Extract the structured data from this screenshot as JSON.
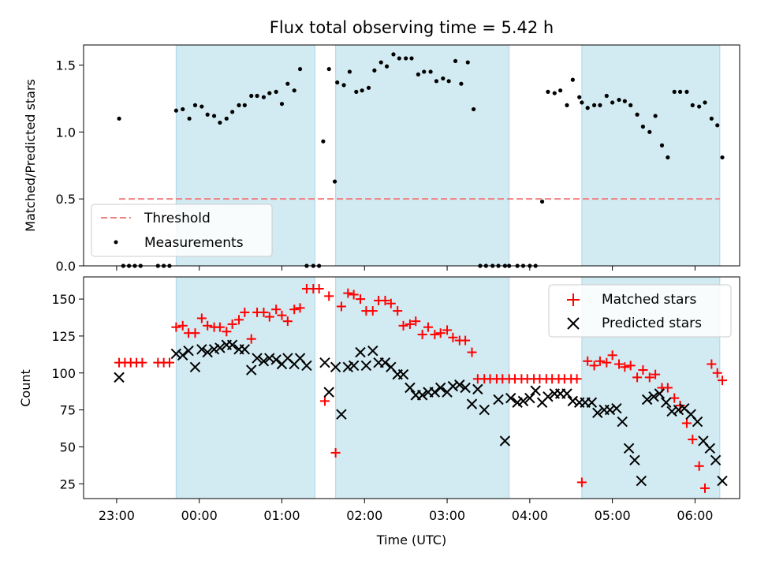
{
  "chart_data": [
    {
      "type": "scatter",
      "title": "Flux total observing time = 5.42 h",
      "ylabel": "Matched/Predicted stars",
      "xlabel": "",
      "x_unit": "UTC time (hours after 23:00 of first day)",
      "xlim": [
        -0.4,
        7.54
      ],
      "ylim": [
        0,
        1.65
      ],
      "yticks": [
        "0.0",
        "0.5",
        "1.0",
        "1.5"
      ],
      "grid": false,
      "legend_position": "lower-left",
      "shaded_intervals": [
        [
          0.72,
          2.4
        ],
        [
          2.65,
          4.75
        ],
        [
          5.63,
          7.3
        ]
      ],
      "shade_color": "#add8e6",
      "series": [
        {
          "name": "Threshold",
          "kind": "dashed-line",
          "color": "#f08080",
          "x": [
            0.03,
            7.3
          ],
          "y": [
            0.5,
            0.5
          ]
        },
        {
          "name": "Measurements",
          "kind": "points",
          "color": "#000000",
          "x": [
            0.03,
            0.08,
            0.15,
            0.22,
            0.29,
            0.5,
            0.57,
            0.64,
            0.72,
            0.8,
            0.88,
            0.95,
            1.03,
            1.1,
            1.18,
            1.25,
            1.33,
            1.4,
            1.48,
            1.55,
            1.63,
            1.7,
            1.78,
            1.85,
            1.93,
            2.0,
            2.07,
            2.15,
            2.22,
            2.3,
            2.38,
            2.45,
            2.5,
            2.57,
            2.64,
            2.67,
            2.75,
            2.82,
            2.9,
            2.97,
            3.05,
            3.12,
            3.2,
            3.27,
            3.35,
            3.42,
            3.5,
            3.57,
            3.65,
            3.72,
            3.8,
            3.87,
            3.95,
            4.02,
            4.1,
            4.17,
            4.25,
            4.32,
            4.4,
            4.47,
            4.55,
            4.62,
            4.7,
            4.75,
            4.85,
            4.92,
            5.0,
            5.07,
            5.15,
            5.22,
            5.3,
            5.37,
            5.45,
            5.52,
            5.6,
            5.63,
            5.7,
            5.78,
            5.85,
            5.93,
            6.0,
            6.08,
            6.15,
            6.22,
            6.3,
            6.37,
            6.45,
            6.52,
            6.6,
            6.67,
            6.75,
            6.82,
            6.9,
            6.97,
            7.05,
            7.12,
            7.2,
            7.27,
            7.33
          ],
          "y": [
            1.1,
            0.0,
            0.0,
            0.0,
            0.0,
            0.0,
            0.0,
            0.0,
            1.16,
            1.17,
            1.1,
            1.2,
            1.19,
            1.13,
            1.12,
            1.07,
            1.1,
            1.15,
            1.2,
            1.2,
            1.27,
            1.27,
            1.26,
            1.29,
            1.3,
            1.21,
            1.36,
            1.31,
            1.47,
            0.0,
            0.0,
            0.0,
            0.93,
            1.47,
            0.63,
            1.37,
            1.35,
            1.45,
            1.3,
            1.31,
            1.33,
            1.46,
            1.52,
            1.49,
            1.58,
            1.55,
            1.55,
            1.55,
            1.43,
            1.45,
            1.45,
            1.38,
            1.4,
            1.38,
            1.53,
            1.36,
            1.52,
            1.17,
            0.0,
            0.0,
            0.0,
            0.0,
            0.0,
            0.0,
            0.0,
            0.0,
            0.0,
            0.0,
            0.48,
            1.3,
            1.29,
            1.31,
            1.2,
            1.39,
            1.26,
            1.22,
            1.18,
            1.2,
            1.2,
            1.27,
            1.22,
            1.24,
            1.23,
            1.2,
            1.13,
            1.04,
            1.0,
            1.12,
            0.9,
            0.81,
            1.3,
            1.3,
            1.3,
            1.2,
            1.19,
            1.22,
            1.1,
            1.05,
            0.81
          ]
        }
      ]
    },
    {
      "type": "scatter",
      "title": "",
      "ylabel": "Count",
      "xlabel": "Time (UTC)",
      "x_unit": "UTC time (hours after 23:00 of first day)",
      "xlim": [
        -0.4,
        7.54
      ],
      "ylim": [
        15,
        165
      ],
      "yticks": [
        "25",
        "50",
        "75",
        "100",
        "125",
        "150"
      ],
      "xticks": [
        "23:00",
        "00:00",
        "01:00",
        "02:00",
        "03:00",
        "04:00",
        "05:00",
        "06:00"
      ],
      "grid": false,
      "legend_position": "upper-right",
      "shaded_intervals": [
        [
          0.72,
          2.4
        ],
        [
          2.65,
          4.75
        ],
        [
          5.63,
          7.3
        ]
      ],
      "shade_color": "#add8e6",
      "series": [
        {
          "name": "Matched stars",
          "marker": "plus",
          "color": "#ff0000",
          "x": [
            0.03,
            0.1,
            0.17,
            0.24,
            0.31,
            0.5,
            0.57,
            0.64,
            0.72,
            0.8,
            0.87,
            0.95,
            1.03,
            1.1,
            1.18,
            1.25,
            1.33,
            1.4,
            1.48,
            1.55,
            1.63,
            1.7,
            1.78,
            1.85,
            1.93,
            2.0,
            2.07,
            2.15,
            2.22,
            2.3,
            2.38,
            2.45,
            2.52,
            2.57,
            2.65,
            2.72,
            2.8,
            2.87,
            2.95,
            3.02,
            3.1,
            3.17,
            3.25,
            3.32,
            3.4,
            3.47,
            3.55,
            3.62,
            3.7,
            3.77,
            3.85,
            3.92,
            4.0,
            4.07,
            4.15,
            4.22,
            4.3,
            4.37,
            4.45,
            4.52,
            4.6,
            4.67,
            4.75,
            4.82,
            4.9,
            4.97,
            5.05,
            5.12,
            5.2,
            5.27,
            5.35,
            5.42,
            5.5,
            5.57,
            5.63,
            5.7,
            5.78,
            5.85,
            5.93,
            6.0,
            6.08,
            6.15,
            6.22,
            6.3,
            6.37,
            6.45,
            6.52,
            6.6,
            6.67,
            6.75,
            6.82,
            6.9,
            6.97,
            7.05,
            7.12,
            7.2,
            7.27,
            7.33
          ],
          "y": [
            107,
            107,
            107,
            107,
            107,
            107,
            107,
            107,
            131,
            132,
            127,
            127,
            137,
            132,
            131,
            131,
            128,
            133,
            136,
            141,
            123,
            141,
            141,
            138,
            143,
            139,
            135,
            143,
            144,
            157,
            157,
            157,
            81,
            152,
            46,
            145,
            154,
            153,
            150,
            142,
            142,
            149,
            149,
            147,
            142,
            132,
            133,
            135,
            126,
            131,
            126,
            127,
            129,
            124,
            122,
            122,
            114,
            96,
            96,
            96,
            96,
            96,
            96,
            96,
            96,
            96,
            96,
            96,
            96,
            96,
            96,
            96,
            96,
            96,
            26,
            108,
            105,
            108,
            107,
            112,
            106,
            104,
            105,
            97,
            102,
            97,
            99,
            90,
            90,
            83,
            78,
            66,
            55,
            37,
            22,
            106,
            100,
            95
          ],
          "y_note": "approx"
        },
        {
          "name": "Predicted stars",
          "marker": "x",
          "color": "#000000",
          "x": [
            0.03,
            0.72,
            0.8,
            0.87,
            0.95,
            1.03,
            1.1,
            1.18,
            1.25,
            1.33,
            1.4,
            1.48,
            1.55,
            1.63,
            1.7,
            1.78,
            1.85,
            1.93,
            2.0,
            2.07,
            2.15,
            2.22,
            2.3,
            2.52,
            2.57,
            2.65,
            2.72,
            2.8,
            2.87,
            2.95,
            3.02,
            3.1,
            3.17,
            3.25,
            3.32,
            3.4,
            3.47,
            3.55,
            3.62,
            3.7,
            3.77,
            3.85,
            3.92,
            4.0,
            4.07,
            4.15,
            4.22,
            4.3,
            4.37,
            4.45,
            4.62,
            4.7,
            4.77,
            4.85,
            4.92,
            5.0,
            5.07,
            5.15,
            5.22,
            5.3,
            5.37,
            5.45,
            5.52,
            5.6,
            5.67,
            5.75,
            5.82,
            5.9,
            5.97,
            6.05,
            6.12,
            6.2,
            6.27,
            6.35,
            6.42,
            6.5,
            6.57,
            6.65,
            6.72,
            6.8,
            6.87,
            6.95,
            7.03,
            7.1,
            7.18,
            7.25,
            7.33
          ],
          "y": [
            97,
            113,
            112,
            115,
            104,
            116,
            114,
            116,
            117,
            119,
            119,
            116,
            116,
            102,
            110,
            108,
            110,
            109,
            106,
            110,
            106,
            110,
            105,
            107,
            87,
            104,
            72,
            104,
            105,
            114,
            105,
            115,
            107,
            107,
            104,
            99,
            99,
            90,
            85,
            85,
            87,
            87,
            90,
            87,
            91,
            92,
            90,
            79,
            89,
            75,
            82,
            54,
            83,
            80,
            81,
            83,
            88,
            80,
            84,
            86,
            86,
            86,
            81,
            80,
            80,
            80,
            73,
            75,
            75,
            76,
            67,
            49,
            41,
            27,
            82,
            84,
            86,
            80,
            74,
            75,
            76,
            72,
            67,
            54,
            49,
            41,
            27
          ],
          "y_note": "approx"
        }
      ]
    }
  ]
}
